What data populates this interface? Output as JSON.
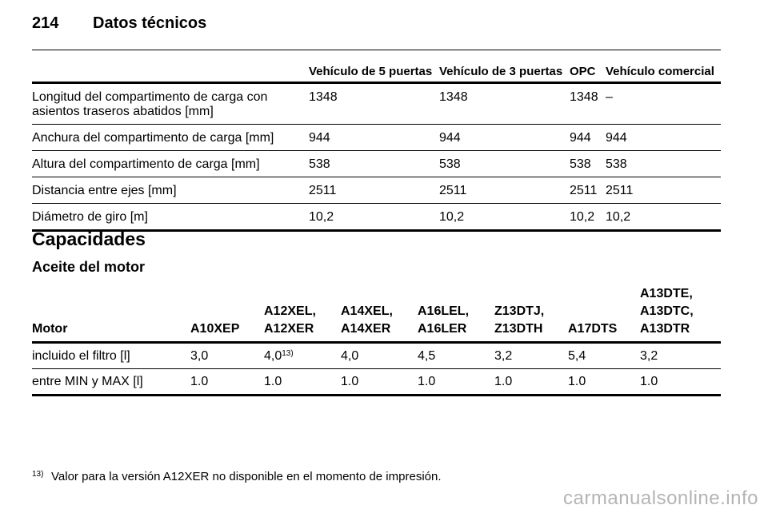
{
  "page": {
    "number": "214",
    "title": "Datos técnicos"
  },
  "tech_table": {
    "columns": [
      "",
      "Vehículo de 5 puertas",
      "Vehículo de 3 puertas",
      "OPC",
      "Vehículo comercial"
    ],
    "rows": [
      [
        "Longitud del compartimento de carga con asientos traseros abatidos [mm]",
        "1348",
        "1348",
        "1348",
        "–"
      ],
      [
        "Anchura del compartimento de carga [mm]",
        "944",
        "944",
        "944",
        "944"
      ],
      [
        "Altura del compartimento de carga [mm]",
        "538",
        "538",
        "538",
        "538"
      ],
      [
        "Distancia entre ejes [mm]",
        "2511",
        "2511",
        "2511",
        "2511"
      ],
      [
        "Diámetro de giro [m]",
        "10,2",
        "10,2",
        "10,2",
        "10,2"
      ]
    ]
  },
  "section": {
    "heading": "Capacidades",
    "subheading": "Aceite del motor"
  },
  "oil_table": {
    "columns": [
      "Motor",
      "A10XEP",
      "A12XEL,\nA12XER",
      "A14XEL,\nA14XER",
      "A16LEL,\nA16LER",
      "Z13DTJ,\nZ13DTH",
      "A17DTS",
      "A13DTE,\nA13DTC,\nA13DTR"
    ],
    "rows": [
      {
        "label": "incluido el filtro [l]",
        "values": [
          "3,0",
          "4,0",
          "4,0",
          "4,5",
          "3,2",
          "5,4",
          "3,2"
        ],
        "note_ref": "13)"
      },
      {
        "label": "entre MIN y MAX [l]",
        "values": [
          "1.0",
          "1.0",
          "1.0",
          "1.0",
          "1.0",
          "1.0",
          "1.0"
        ]
      }
    ]
  },
  "footnote": {
    "mark": "13)",
    "text": "Valor para la versión A12XER no disponible en el momento de impresión."
  },
  "watermark": "carmanualsonline.info"
}
